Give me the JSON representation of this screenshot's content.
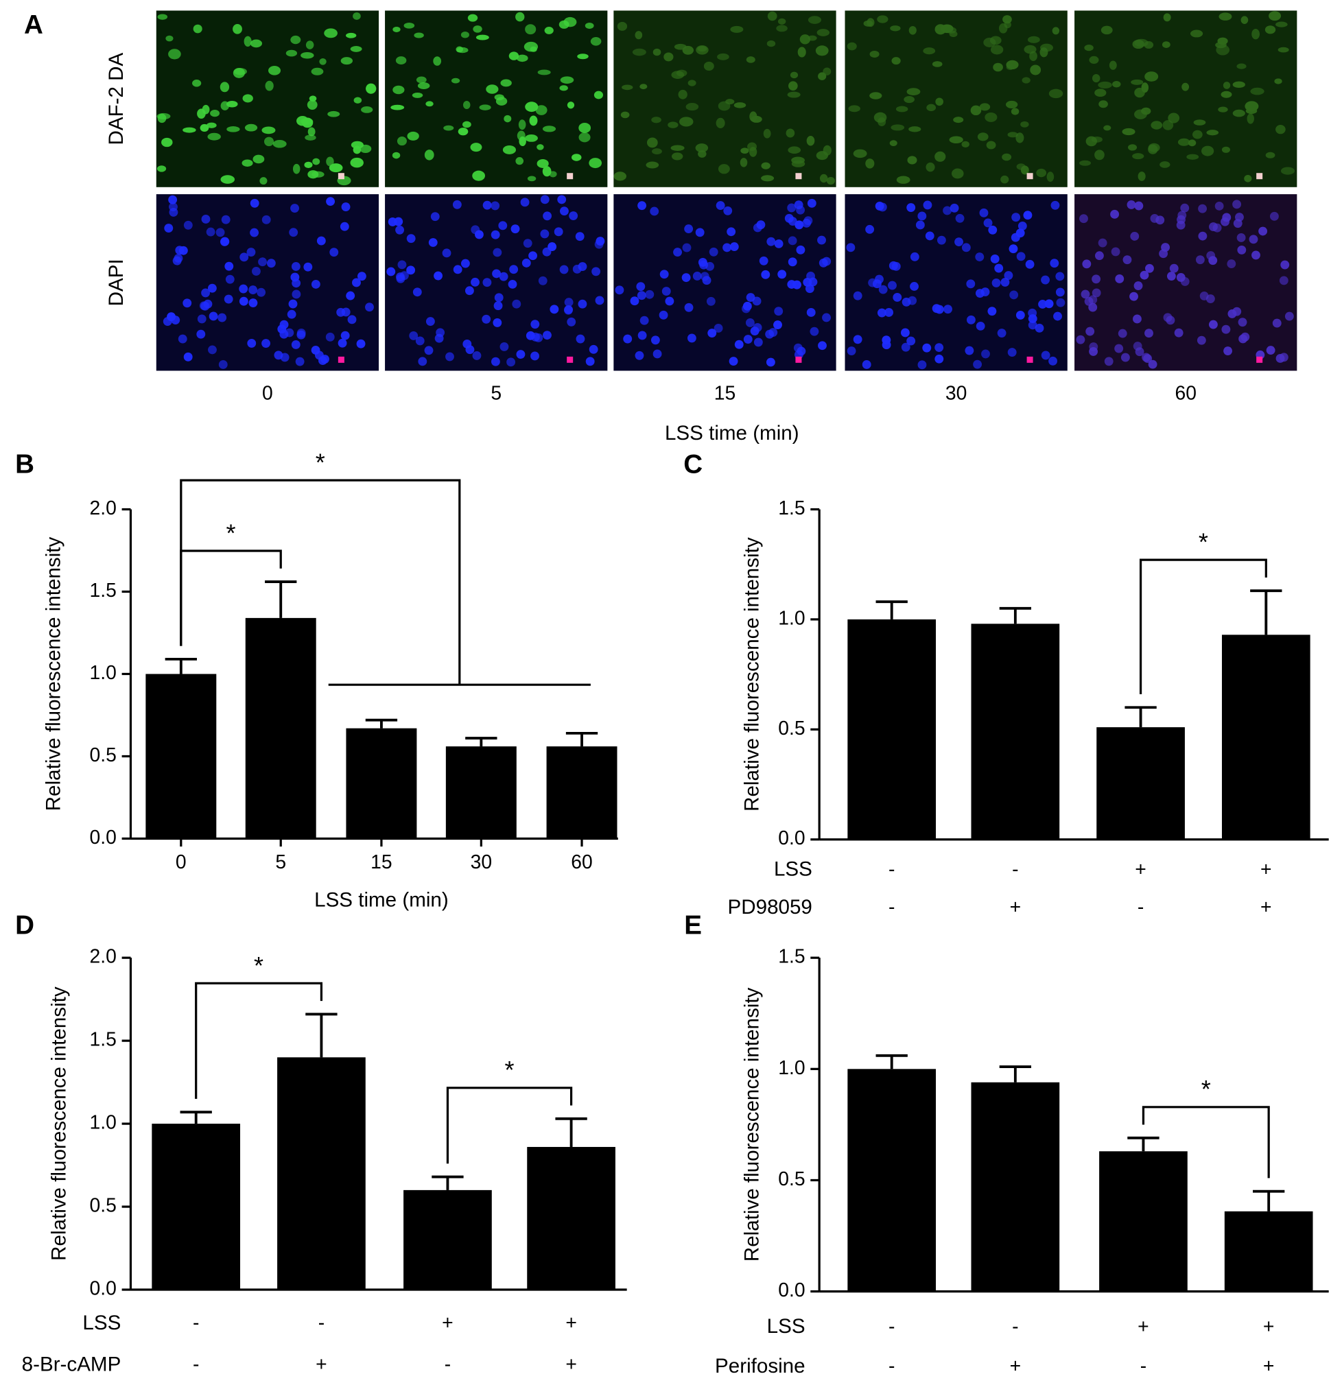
{
  "panel_a": {
    "label": "A",
    "rows": [
      "DAF-2 DA",
      "DAPI"
    ],
    "columns": [
      "0",
      "5",
      "15",
      "30",
      "60"
    ],
    "xlabel": "LSS time (min)"
  },
  "chart_data": [
    {
      "type": "bar",
      "label": "B",
      "ylabel": "Relative fluorescence intensity",
      "xlabel": "LSS time (min)",
      "categories": [
        "0",
        "5",
        "15",
        "30",
        "60"
      ],
      "values": [
        1.0,
        1.34,
        0.67,
        0.56,
        0.56
      ],
      "errors": [
        0.09,
        0.22,
        0.05,
        0.05,
        0.08
      ],
      "color": "#000000",
      "ylim": [
        0,
        2
      ],
      "yticks": [
        {
          "value": 0,
          "label": "0.0"
        },
        {
          "value": 0.5,
          "label": "0.5"
        },
        {
          "value": 1,
          "label": "1.0"
        },
        {
          "value": 1.5,
          "label": "1.5"
        },
        {
          "value": 2,
          "label": "2.0"
        }
      ],
      "significance": [
        {
          "label": "*",
          "a": [
            0
          ],
          "b": [
            1
          ]
        },
        {
          "label": "*",
          "a": [
            0
          ],
          "b": [
            2,
            3,
            4
          ]
        }
      ]
    },
    {
      "type": "bar",
      "label": "C",
      "ylabel": "Relative fluorescence intensity",
      "values": [
        1.0,
        0.98,
        0.51,
        0.93
      ],
      "errors": [
        0.08,
        0.07,
        0.09,
        0.2
      ],
      "color": "#000000",
      "ylim": [
        0,
        1.5
      ],
      "yticks": [
        {
          "value": 0,
          "label": "0.0"
        },
        {
          "value": 0.5,
          "label": "0.5"
        },
        {
          "value": 1,
          "label": "1.0"
        },
        {
          "value": 1.5,
          "label": "1.5"
        }
      ],
      "conditions": [
        {
          "name": "LSS",
          "values": [
            "-",
            "-",
            "+",
            "+"
          ]
        },
        {
          "name": "PD98059",
          "values": [
            "-",
            "+",
            "-",
            "+"
          ]
        }
      ],
      "significance": [
        {
          "label": "*",
          "a": [
            2
          ],
          "b": [
            3
          ]
        }
      ]
    },
    {
      "type": "bar",
      "label": "D",
      "ylabel": "Relative fluorescence intensity",
      "values": [
        1.0,
        1.4,
        0.6,
        0.86
      ],
      "errors": [
        0.07,
        0.26,
        0.08,
        0.17
      ],
      "color": "#000000",
      "ylim": [
        0,
        2
      ],
      "yticks": [
        {
          "value": 0,
          "label": "0.0"
        },
        {
          "value": 0.5,
          "label": "0.5"
        },
        {
          "value": 1,
          "label": "1.0"
        },
        {
          "value": 1.5,
          "label": "1.5"
        },
        {
          "value": 2,
          "label": "2.0"
        }
      ],
      "conditions": [
        {
          "name": "LSS",
          "values": [
            "-",
            "-",
            "+",
            "+"
          ]
        },
        {
          "name": "8-Br-cAMP",
          "values": [
            "-",
            "+",
            "-",
            "+"
          ]
        }
      ],
      "significance": [
        {
          "label": "*",
          "a": [
            0
          ],
          "b": [
            1
          ]
        },
        {
          "label": "*",
          "a": [
            2
          ],
          "b": [
            3
          ]
        }
      ]
    },
    {
      "type": "bar",
      "label": "E",
      "ylabel": "Relative fluorescence intensity",
      "values": [
        1.0,
        0.94,
        0.63,
        0.36
      ],
      "errors": [
        0.06,
        0.07,
        0.06,
        0.09
      ],
      "color": "#000000",
      "ylim": [
        0,
        1.5
      ],
      "yticks": [
        {
          "value": 0,
          "label": "0.0"
        },
        {
          "value": 0.5,
          "label": "0.5"
        },
        {
          "value": 1,
          "label": "1.0"
        },
        {
          "value": 1.5,
          "label": "1.5"
        }
      ],
      "conditions": [
        {
          "name": "LSS",
          "values": [
            "-",
            "-",
            "+",
            "+"
          ]
        },
        {
          "name": "Perifosine",
          "values": [
            "-",
            "+",
            "-",
            "+"
          ]
        }
      ],
      "significance": [
        {
          "label": "*",
          "a": [
            2
          ],
          "b": [
            3
          ]
        }
      ]
    }
  ]
}
